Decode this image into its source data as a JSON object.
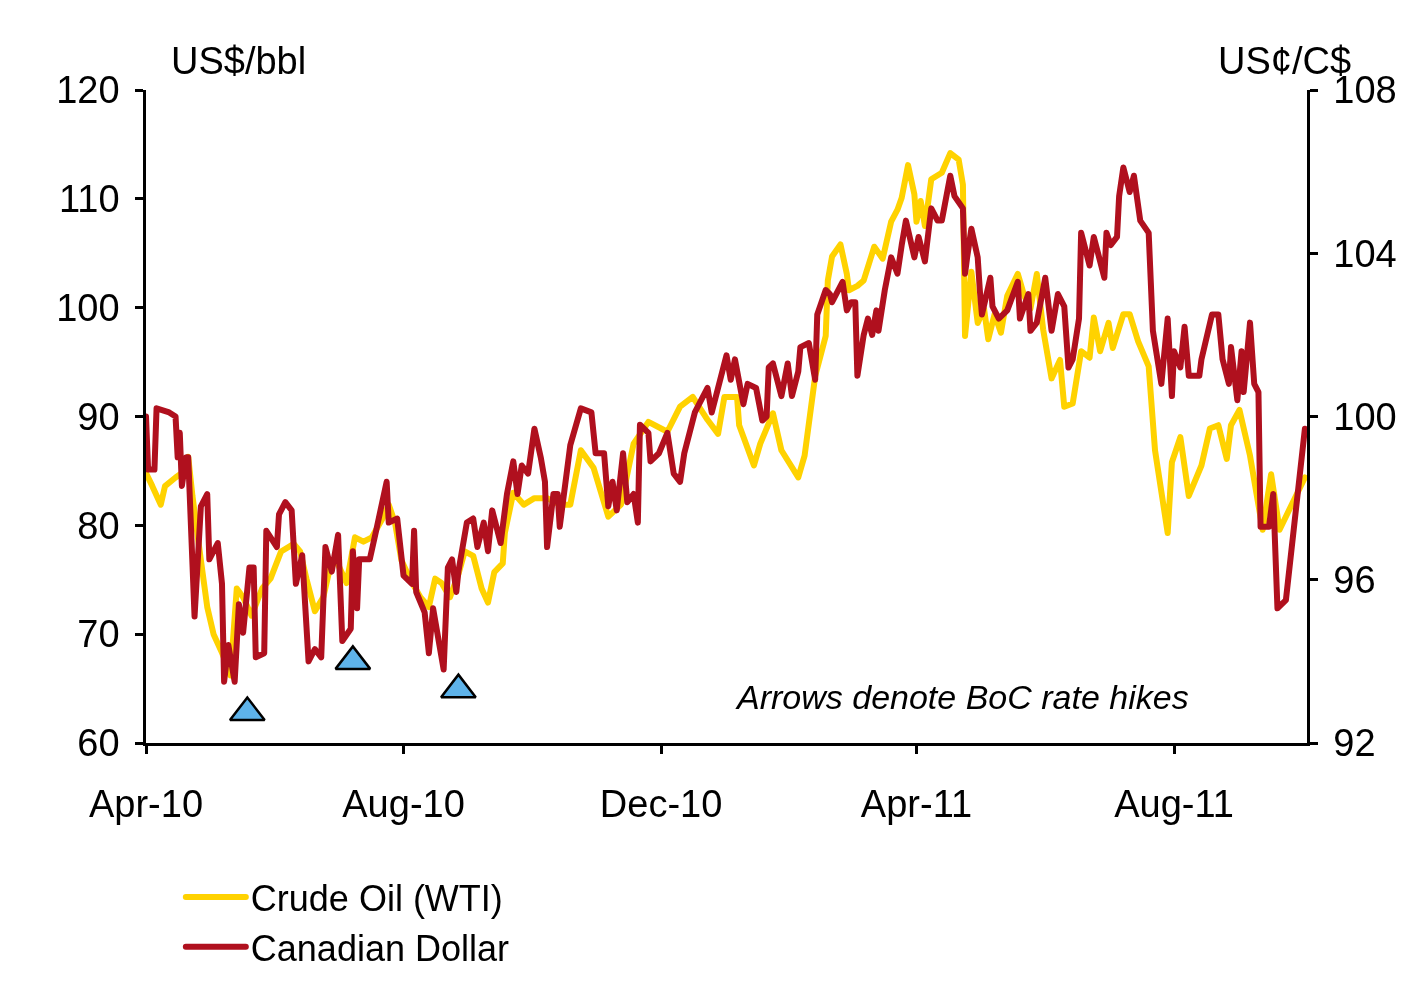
{
  "chart_data": {
    "type": "line",
    "ylabel": "US$/bbl",
    "y2label": "US¢/C$",
    "annotations": [
      "Arrows denote BoC rate hikes"
    ],
    "xlim": [
      "2010-04-01",
      "2011-10-03"
    ],
    "xticks": [
      {
        "value": "2010-04-01",
        "label": "Apr-10"
      },
      {
        "value": "2010-08-01",
        "label": "Aug-10"
      },
      {
        "value": "2010-12-01",
        "label": "Dec-10"
      },
      {
        "value": "2011-04-01",
        "label": "Apr-11"
      },
      {
        "value": "2011-08-01",
        "label": "Aug-11"
      }
    ],
    "ylim": [
      60,
      120
    ],
    "yticks": [
      60,
      70,
      80,
      90,
      100,
      110,
      120
    ],
    "y2lim": [
      92,
      108
    ],
    "y2ticks": [
      92,
      96,
      100,
      104,
      108
    ],
    "grid": false,
    "legend": "bottom",
    "series": [
      {
        "name": "Crude Oil (WTI)",
        "color": "#ffd200",
        "axis": "y",
        "x": [
          "2010-04-01",
          "2010-04-04",
          "2010-04-08",
          "2010-04-10",
          "2010-04-15",
          "2010-04-18",
          "2010-04-21",
          "2010-04-23",
          "2010-04-27",
          "2010-04-30",
          "2010-05-03",
          "2010-05-07",
          "2010-05-11",
          "2010-05-14",
          "2010-05-17",
          "2010-05-21",
          "2010-05-26",
          "2010-05-30",
          "2010-06-04",
          "2010-06-10",
          "2010-06-13",
          "2010-06-16",
          "2010-06-20",
          "2010-06-24",
          "2010-06-28",
          "2010-07-01",
          "2010-07-05",
          "2010-07-09",
          "2010-07-13",
          "2010-07-17",
          "2010-07-22",
          "2010-07-25",
          "2010-07-28",
          "2010-07-31",
          "2010-08-04",
          "2010-08-09",
          "2010-08-13",
          "2010-08-16",
          "2010-08-19",
          "2010-08-23",
          "2010-08-27",
          "2010-08-30",
          "2010-09-03",
          "2010-09-07",
          "2010-09-10",
          "2010-09-13",
          "2010-09-17",
          "2010-09-18",
          "2010-09-22",
          "2010-09-27",
          "2010-10-02",
          "2010-10-08",
          "2010-10-14",
          "2010-10-19",
          "2010-10-24",
          "2010-10-30",
          "2010-11-06",
          "2010-11-12",
          "2010-11-18",
          "2010-11-25",
          "2010-12-04",
          "2010-12-10",
          "2010-12-16",
          "2010-12-23",
          "2010-12-28",
          "2010-12-31",
          "2011-01-06",
          "2011-01-07",
          "2011-01-14",
          "2011-01-17",
          "2011-01-23",
          "2011-01-27",
          "2011-02-04",
          "2011-02-07",
          "2011-02-12",
          "2011-02-17",
          "2011-02-18",
          "2011-02-20",
          "2011-02-24",
          "2011-02-27",
          "2011-02-28",
          "2011-03-04",
          "2011-03-07",
          "2011-03-12",
          "2011-03-16",
          "2011-03-20",
          "2011-03-23",
          "2011-03-25",
          "2011-03-28",
          "2011-03-31",
          "2011-04-01",
          "2011-04-03",
          "2011-04-05",
          "2011-04-08",
          "2011-04-13",
          "2011-04-17",
          "2011-04-21",
          "2011-04-23",
          "2011-04-24",
          "2011-04-27",
          "2011-04-30",
          "2011-05-03",
          "2011-05-05",
          "2011-05-08",
          "2011-05-11",
          "2011-05-14",
          "2011-05-19",
          "2011-05-22",
          "2011-05-25",
          "2011-05-28",
          "2011-05-31",
          "2011-06-04",
          "2011-06-08",
          "2011-06-10",
          "2011-06-14",
          "2011-06-18",
          "2011-06-22",
          "2011-06-24",
          "2011-06-27",
          "2011-07-01",
          "2011-07-03",
          "2011-07-08",
          "2011-07-11",
          "2011-07-15",
          "2011-07-20",
          "2011-07-23",
          "2011-07-29",
          "2011-07-31",
          "2011-08-04",
          "2011-08-08",
          "2011-08-14",
          "2011-08-18",
          "2011-08-22",
          "2011-08-26",
          "2011-08-28",
          "2011-09-01",
          "2011-09-06",
          "2011-09-12",
          "2011-09-16",
          "2011-09-20",
          "2011-10-02"
        ],
        "values": [
          84.8,
          83.6,
          81.9,
          83.6,
          84.4,
          84.8,
          86.3,
          82.7,
          76.8,
          72.5,
          70.0,
          68.3,
          66.2,
          74.2,
          73.4,
          71.7,
          74.2,
          75.1,
          77.6,
          78.3,
          77.6,
          75.1,
          72.1,
          73.4,
          76.8,
          76.4,
          74.7,
          78.9,
          78.5,
          78.9,
          80.6,
          81.9,
          80.2,
          76.8,
          75.1,
          73.4,
          72.5,
          75.1,
          74.7,
          73.4,
          75.5,
          77.6,
          77.2,
          74.2,
          72.9,
          75.7,
          76.5,
          79.3,
          83.0,
          81.9,
          82.5,
          82.5,
          81.9,
          81.9,
          86.9,
          85.3,
          80.8,
          81.9,
          87.5,
          89.5,
          88.6,
          90.9,
          91.8,
          89.7,
          88.4,
          91.8,
          91.8,
          89.2,
          85.5,
          87.5,
          90.3,
          86.9,
          84.4,
          86.4,
          93.7,
          97.4,
          102.5,
          104.7,
          105.8,
          103.1,
          101.6,
          102.0,
          102.5,
          105.6,
          104.5,
          107.9,
          109.0,
          110.1,
          113.1,
          110.4,
          107.9,
          109.8,
          107.5,
          111.8,
          112.4,
          114.2,
          113.6,
          111.3,
          97.4,
          103.3,
          98.6,
          99.9,
          97.1,
          99.4,
          97.7,
          101.1,
          103.1,
          101.1,
          99.9,
          103.1,
          98.0,
          93.5,
          95.2,
          90.9,
          91.2,
          96.0,
          95.4,
          99.1,
          96.0,
          98.6,
          96.3,
          99.4,
          99.4,
          96.9,
          94.6,
          86.9,
          79.3,
          85.8,
          88.1,
          82.7,
          85.5,
          88.9,
          89.2,
          86.1,
          89.2,
          90.6,
          86.4,
          79.6,
          84.7,
          79.6,
          84.4
        ]
      },
      {
        "name": "Canadian Dollar",
        "color": "#b0101e",
        "axis": "y2",
        "x": [
          "2010-04-01",
          "2010-04-02",
          "2010-04-05",
          "2010-04-06",
          "2010-04-12",
          "2010-04-15",
          "2010-04-16",
          "2010-04-17",
          "2010-04-18",
          "2010-04-20",
          "2010-04-21",
          "2010-04-24",
          "2010-04-27",
          "2010-04-30",
          "2010-05-01",
          "2010-05-05",
          "2010-05-07",
          "2010-05-08",
          "2010-05-10",
          "2010-05-13",
          "2010-05-15",
          "2010-05-17",
          "2010-05-20",
          "2010-05-22",
          "2010-05-23",
          "2010-05-27",
          "2010-05-28",
          "2010-06-02",
          "2010-06-03",
          "2010-06-06",
          "2010-06-09",
          "2010-06-11",
          "2010-06-14",
          "2010-06-17",
          "2010-06-20",
          "2010-06-23",
          "2010-06-25",
          "2010-06-28",
          "2010-07-01",
          "2010-07-03",
          "2010-07-07",
          "2010-07-08",
          "2010-07-10",
          "2010-07-11",
          "2010-07-16",
          "2010-07-19",
          "2010-07-24",
          "2010-07-25",
          "2010-07-29",
          "2010-08-01",
          "2010-08-05",
          "2010-08-06",
          "2010-08-07",
          "2010-08-11",
          "2010-08-13",
          "2010-08-15",
          "2010-08-18",
          "2010-08-20",
          "2010-08-22",
          "2010-08-24",
          "2010-08-26",
          "2010-08-27",
          "2010-08-31",
          "2010-09-03",
          "2010-09-05",
          "2010-09-08",
          "2010-09-10",
          "2010-09-12",
          "2010-09-16",
          "2010-09-19",
          "2010-09-22",
          "2010-09-24",
          "2010-09-26",
          "2010-09-29",
          "2010-10-02",
          "2010-10-05",
          "2010-10-07",
          "2010-10-08",
          "2010-10-11",
          "2010-10-13",
          "2010-10-14",
          "2010-10-19",
          "2010-10-24",
          "2010-10-29",
          "2010-10-31",
          "2010-11-04",
          "2010-11-06",
          "2010-11-08",
          "2010-11-10",
          "2010-11-13",
          "2010-11-15",
          "2010-11-18",
          "2010-11-20",
          "2010-11-21",
          "2010-11-25",
          "2010-11-26",
          "2010-11-30",
          "2010-12-04",
          "2010-12-07",
          "2010-12-10",
          "2010-12-12",
          "2010-12-17",
          "2010-12-23",
          "2010-12-25",
          "2010-12-28",
          "2011-01-01",
          "2011-01-03",
          "2011-01-05",
          "2011-01-09",
          "2011-01-11",
          "2011-01-15",
          "2011-01-18",
          "2011-01-20",
          "2011-01-21",
          "2011-01-23",
          "2011-01-27",
          "2011-01-30",
          "2011-02-01",
          "2011-02-04",
          "2011-02-05",
          "2011-02-09",
          "2011-02-12",
          "2011-02-13",
          "2011-02-17",
          "2011-02-19",
          "2011-02-20",
          "2011-02-25",
          "2011-02-27",
          "2011-03-01",
          "2011-03-03",
          "2011-03-04",
          "2011-03-07",
          "2011-03-09",
          "2011-03-11",
          "2011-03-13",
          "2011-03-14",
          "2011-03-17",
          "2011-03-20",
          "2011-03-23",
          "2011-03-25",
          "2011-03-27",
          "2011-03-31",
          "2011-04-02",
          "2011-04-05",
          "2011-04-08",
          "2011-04-11",
          "2011-04-13",
          "2011-04-17",
          "2011-04-19",
          "2011-04-23",
          "2011-04-24",
          "2011-04-25",
          "2011-04-27",
          "2011-04-30",
          "2011-05-01",
          "2011-05-02",
          "2011-05-06",
          "2011-05-07",
          "2011-05-10",
          "2011-05-14",
          "2011-05-19",
          "2011-05-20",
          "2011-05-24",
          "2011-05-25",
          "2011-05-28",
          "2011-06-01",
          "2011-06-04",
          "2011-06-07",
          "2011-06-10",
          "2011-06-12",
          "2011-06-14",
          "2011-06-17",
          "2011-06-18",
          "2011-06-22",
          "2011-06-24",
          "2011-06-29",
          "2011-06-30",
          "2011-07-02",
          "2011-07-05",
          "2011-07-06",
          "2011-07-08",
          "2011-07-11",
          "2011-07-13",
          "2011-07-16",
          "2011-07-20",
          "2011-07-22",
          "2011-07-26",
          "2011-07-29",
          "2011-07-31",
          "2011-08-01",
          "2011-08-04",
          "2011-08-06",
          "2011-08-08",
          "2011-08-13",
          "2011-08-14",
          "2011-08-19",
          "2011-08-22",
          "2011-08-24",
          "2011-08-27",
          "2011-08-28",
          "2011-08-31",
          "2011-09-02",
          "2011-09-03",
          "2011-09-06",
          "2011-09-08",
          "2011-09-10",
          "2011-09-11",
          "2011-09-15",
          "2011-09-17",
          "2011-09-19",
          "2011-09-23",
          "2011-10-02"
        ],
        "values": [
          100.0,
          98.7,
          98.7,
          100.2,
          100.1,
          100.0,
          99.0,
          99.6,
          98.3,
          99.0,
          99.0,
          95.1,
          97.8,
          98.1,
          96.5,
          96.9,
          95.9,
          93.5,
          94.4,
          93.5,
          95.4,
          94.7,
          96.3,
          96.3,
          94.1,
          94.2,
          97.2,
          96.8,
          97.6,
          97.9,
          97.7,
          95.9,
          96.6,
          94.0,
          94.3,
          94.1,
          96.8,
          96.2,
          97.1,
          94.5,
          94.8,
          96.7,
          95.3,
          96.5,
          96.5,
          97.2,
          98.4,
          97.4,
          97.5,
          96.1,
          95.9,
          97.2,
          95.7,
          95.2,
          94.2,
          95.3,
          94.4,
          93.8,
          96.3,
          96.5,
          95.7,
          96.2,
          97.4,
          97.5,
          96.8,
          97.4,
          96.7,
          97.7,
          96.9,
          98.1,
          98.9,
          98.1,
          98.8,
          98.6,
          99.7,
          99.0,
          98.4,
          96.8,
          98.1,
          98.1,
          97.3,
          99.3,
          100.2,
          100.1,
          99.1,
          99.1,
          97.8,
          98.4,
          97.7,
          99.1,
          97.9,
          98.1,
          97.4,
          99.8,
          99.6,
          98.9,
          99.1,
          99.6,
          98.6,
          98.4,
          99.1,
          100.1,
          100.7,
          100.1,
          100.7,
          101.5,
          100.9,
          101.4,
          100.3,
          100.8,
          100.7,
          99.9,
          100.0,
          101.2,
          101.3,
          100.5,
          101.3,
          100.5,
          101.1,
          101.7,
          101.8,
          100.9,
          102.5,
          103.1,
          103.0,
          102.8,
          103.3,
          102.6,
          102.8,
          102.8,
          101.0,
          102.0,
          102.4,
          102.0,
          102.6,
          102.1,
          103.1,
          103.9,
          103.5,
          104.2,
          104.8,
          103.9,
          104.4,
          103.8,
          105.1,
          104.8,
          104.8,
          105.9,
          105.4,
          105.1,
          103.5,
          103.9,
          104.6,
          103.9,
          103.1,
          102.5,
          103.4,
          102.7,
          102.4,
          102.6,
          103.3,
          102.4,
          103.0,
          102.1,
          102.3,
          103.4,
          102.1,
          103.0,
          102.7,
          101.2,
          101.4,
          102.4,
          104.5,
          103.7,
          104.4,
          103.4,
          104.5,
          104.2,
          104.4,
          105.4,
          106.1,
          105.5,
          105.9,
          104.8,
          104.5,
          102.1,
          100.8,
          102.4,
          100.5,
          101.6,
          101.2,
          102.2,
          101.0,
          101.0,
          101.4,
          102.5,
          102.5,
          101.4,
          100.8,
          101.7,
          100.4,
          101.6,
          100.6,
          102.3,
          100.8,
          100.6,
          97.3,
          97.3,
          98.1,
          95.3,
          95.5,
          99.7
        ]
      },
      {
        "type": "scatter",
        "color": "#5eb3ea",
        "axis": "y",
        "marker": "triangle",
        "x": [
          "2010-05-19",
          "2010-07-08",
          "2010-08-27"
        ],
        "values": [
          62.8,
          67.5,
          64.9
        ]
      }
    ]
  }
}
